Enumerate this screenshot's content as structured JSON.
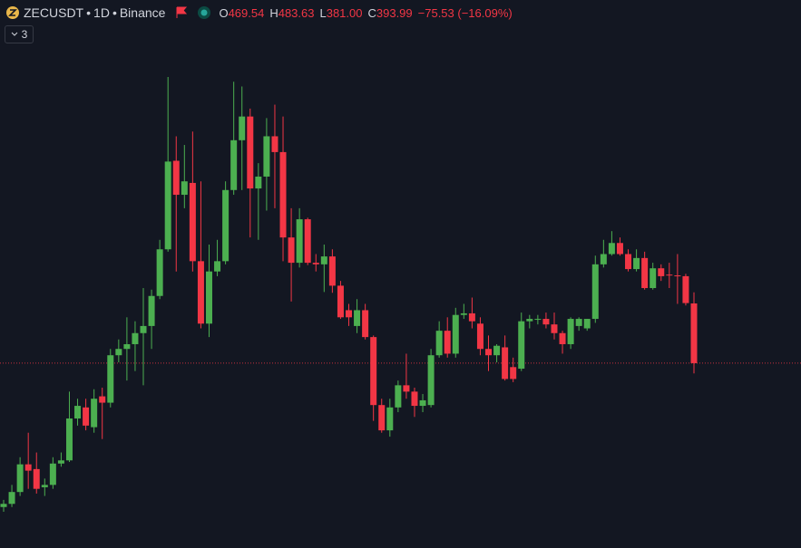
{
  "chart_data": {
    "type": "candlestick",
    "symbol": "ZECUSDT",
    "separator": "•",
    "interval": "1D",
    "exchange": "Binance",
    "status_line": [
      {
        "key": "O",
        "value": "469.54"
      },
      {
        "key": "H",
        "value": "483.63"
      },
      {
        "key": "L",
        "value": "381.00"
      },
      {
        "key": "C",
        "value": "393.99"
      }
    ],
    "change": "−75.53 (−16.09%)",
    "indicators_count": 3,
    "up_color": "#4caf50",
    "down_color": "#f23645",
    "price_line": true,
    "open": [
      212,
      216,
      231,
      266,
      260,
      237,
      240,
      267,
      271,
      324,
      338,
      313,
      352,
      344,
      404,
      412,
      418,
      432,
      441,
      479,
      538,
      650,
      607,
      622,
      523,
      444,
      510,
      523,
      613,
      676,
      706,
      615,
      630,
      681,
      661,
      553,
      521,
      576,
      521,
      519,
      529,
      492,
      461,
      441,
      461,
      427,
      341,
      309,
      338,
      366,
      358,
      340,
      341,
      404,
      435,
      406,
      455,
      457,
      444,
      412,
      404,
      414,
      389,
      387,
      447,
      449,
      450,
      443,
      432,
      418,
      441,
      438,
      450,
      519,
      532,
      546,
      532,
      513,
      527,
      489,
      514,
      506,
      505,
      504,
      469.54
    ],
    "high": [
      221,
      240,
      275,
      306,
      281,
      248,
      275,
      281,
      358,
      349,
      349,
      361,
      363,
      412,
      424,
      452,
      447,
      489,
      487,
      550,
      756,
      681,
      670,
      687,
      624,
      544,
      550,
      624,
      750,
      744,
      716,
      647,
      704,
      721,
      706,
      590,
      590,
      578,
      532,
      544,
      538,
      498,
      469,
      475,
      469,
      429,
      349,
      349,
      372,
      406,
      363,
      355,
      412,
      447,
      452,
      464,
      469,
      477,
      452,
      429,
      418,
      429,
      401,
      458,
      455,
      455,
      458,
      458,
      435,
      452,
      452,
      450,
      530,
      550,
      561,
      553,
      538,
      538,
      535,
      521,
      519,
      521,
      532,
      507,
      483.63
    ],
    "low": [
      206,
      212,
      226,
      235,
      229,
      226,
      235,
      263,
      269,
      315,
      309,
      306,
      298,
      338,
      395,
      372,
      384,
      366,
      412,
      475,
      535,
      510,
      590,
      510,
      438,
      427,
      504,
      519,
      607,
      613,
      553,
      550,
      587,
      590,
      523,
      472,
      515,
      518,
      510,
      484,
      483,
      450,
      441,
      432,
      424,
      321,
      306,
      301,
      332,
      349,
      326,
      332,
      338,
      401,
      401,
      401,
      450,
      438,
      404,
      384,
      395,
      372,
      370,
      384,
      438,
      443,
      438,
      424,
      406,
      412,
      435,
      435,
      445,
      515,
      530,
      530,
      510,
      510,
      487,
      487,
      498,
      489,
      469,
      467,
      381
    ],
    "close": [
      216,
      231,
      266,
      258,
      235,
      240,
      267,
      271,
      324,
      340,
      315,
      349,
      344,
      404,
      412,
      418,
      432,
      441,
      479,
      538,
      649,
      607,
      624,
      523,
      444,
      510,
      523,
      613,
      676,
      706,
      615,
      630,
      681,
      661,
      553,
      521,
      576,
      521,
      519,
      529,
      492,
      452,
      452,
      461,
      427,
      341,
      309,
      338,
      366,
      358,
      340,
      347,
      404,
      435,
      406,
      455,
      457,
      447,
      412,
      404,
      416,
      374,
      374,
      447,
      450,
      450,
      443,
      432,
      418,
      450,
      450,
      450,
      519,
      532,
      546,
      532,
      513,
      527,
      489,
      514,
      504,
      505,
      504,
      470,
      393.99
    ]
  }
}
